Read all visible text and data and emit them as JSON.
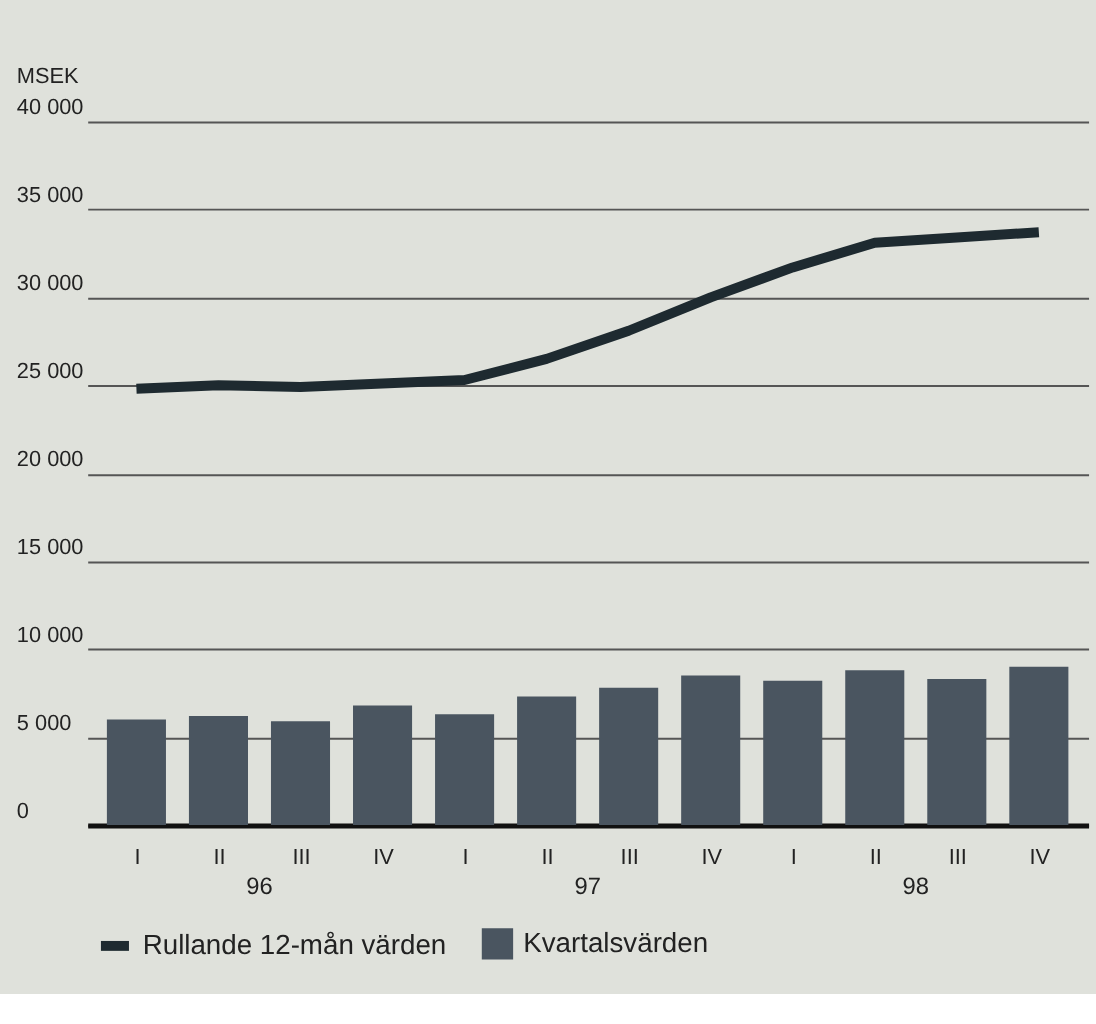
{
  "chart_data": {
    "type": "bar",
    "ylabel": "MSEK",
    "categories": [
      "I",
      "II",
      "III",
      "IV",
      "I",
      "II",
      "III",
      "IV",
      "I",
      "II",
      "III",
      "IV"
    ],
    "series": [
      {
        "name": "Rullande 12-mån värden",
        "type": "line",
        "color": "#1e2a30",
        "values": [
          24800,
          25000,
          24900,
          25100,
          25300,
          26500,
          28100,
          30000,
          31700,
          33100,
          33400,
          33700
        ]
      },
      {
        "name": "Kvartalsvärden",
        "color": "#4a5560",
        "values": [
          6000,
          6200,
          5900,
          6800,
          6300,
          7300,
          7800,
          8500,
          8200,
          8800,
          8300,
          9000
        ]
      }
    ],
    "ylim": [
      0,
      40000
    ],
    "yticks": [
      {
        "value": 0,
        "label": "0"
      },
      {
        "value": 5000,
        "label": "5 000"
      },
      {
        "value": 10000,
        "label": "10 000"
      },
      {
        "value": 15000,
        "label": "15 000"
      },
      {
        "value": 20000,
        "label": "20 000"
      },
      {
        "value": 25000,
        "label": "25 000"
      },
      {
        "value": 30000,
        "label": "30 000"
      },
      {
        "value": 35000,
        "label": "35 000"
      },
      {
        "value": 40000,
        "label": "40 000"
      }
    ],
    "annotations": [
      "96",
      "97",
      "98"
    ],
    "grid": "y",
    "legend": "bottom",
    "line_style": "solid",
    "marker": "none"
  }
}
